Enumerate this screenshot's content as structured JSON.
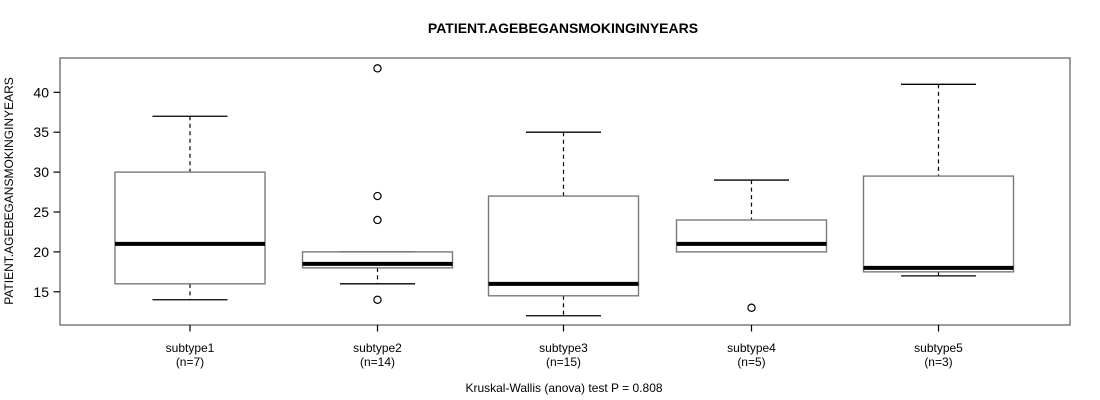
{
  "chart_data": {
    "type": "boxplot",
    "title": "PATIENT.AGEBEGANSMOKINGINYEARS",
    "ylabel": "PATIENT.AGEBEGANSMOKINGINYEARS",
    "caption": "Kruskal-Wallis (anova) test P = 0.808",
    "y_axis": {
      "ticks": [
        15,
        20,
        25,
        30,
        35,
        40
      ],
      "range_shown": [
        10.8,
        44.9
      ]
    },
    "grid": "off",
    "groups": [
      {
        "label": "subtype1",
        "sublabel": "(n=7)",
        "n": 7,
        "lower_whisker": 14,
        "q1": 16,
        "median": 21,
        "q3": 30,
        "upper_whisker": 37,
        "outliers": []
      },
      {
        "label": "subtype2",
        "sublabel": "(n=14)",
        "n": 14,
        "lower_whisker": 16,
        "q1": 18,
        "median": 18.5,
        "q3": 20,
        "upper_whisker": 20,
        "outliers": [
          43,
          27,
          24,
          14
        ]
      },
      {
        "label": "subtype3",
        "sublabel": "(n=15)",
        "n": 15,
        "lower_whisker": 12,
        "q1": 14.5,
        "median": 16,
        "q3": 27,
        "upper_whisker": 35,
        "outliers": []
      },
      {
        "label": "subtype4",
        "sublabel": "(n=5)",
        "n": 5,
        "lower_whisker": 20,
        "q1": 20,
        "median": 21,
        "q3": 24,
        "upper_whisker": 29,
        "outliers": [
          13
        ]
      },
      {
        "label": "subtype5",
        "sublabel": "(n=3)",
        "n": 3,
        "lower_whisker": 17,
        "q1": 17.5,
        "median": 18,
        "q3": 29.5,
        "upper_whisker": 41,
        "outliers": []
      }
    ],
    "colors": {
      "background": "#ffffff",
      "frame": "#666666",
      "box_border": "#7a7a7a",
      "box_fill": "#ffffff",
      "line": "#000000",
      "text": "#000000"
    }
  }
}
